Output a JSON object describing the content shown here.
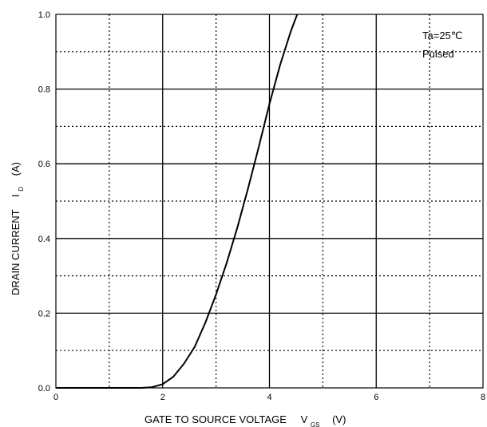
{
  "chart_data": {
    "type": "line",
    "title": "",
    "xlabel": "GATE TO SOURCE VOLTAGE",
    "xlabel_symbol": "V",
    "xlabel_subscript": "GS",
    "xlabel_unit": "(V)",
    "ylabel": "DRAIN CURRENT",
    "ylabel_symbol": "I",
    "ylabel_subscript": "D",
    "ylabel_unit": "(A)",
    "xlim": [
      0,
      8
    ],
    "ylim": [
      0,
      1.0
    ],
    "x_tick_labels": [
      "0",
      "2",
      "4",
      "6",
      "8"
    ],
    "y_tick_labels": [
      "0.0",
      "0.2",
      "0.4",
      "0.6",
      "0.8",
      "1.0"
    ],
    "grid": true,
    "annotations": [
      "Ta=25℃",
      "Pulsed"
    ],
    "series": [
      {
        "x": [
          0.0,
          1.0,
          1.6,
          1.8,
          2.0,
          2.2,
          2.4,
          2.6,
          2.8,
          3.0,
          3.2,
          3.4,
          3.6,
          3.8,
          4.0,
          4.2,
          4.4,
          4.52
        ],
        "y": [
          0.0,
          0.0,
          0.0,
          0.002,
          0.01,
          0.03,
          0.065,
          0.11,
          0.175,
          0.25,
          0.335,
          0.43,
          0.535,
          0.645,
          0.76,
          0.865,
          0.955,
          1.0
        ]
      }
    ]
  }
}
